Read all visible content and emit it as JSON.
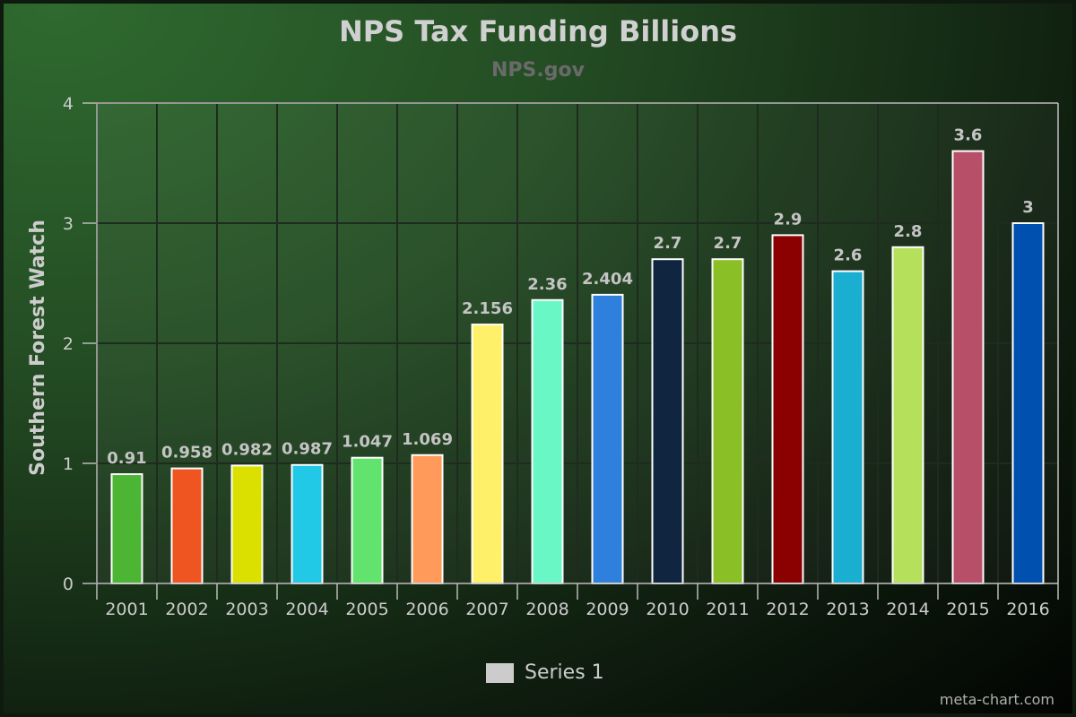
{
  "chart_data": {
    "type": "bar",
    "title": "NPS Tax Funding Billions",
    "subtitle": "NPS.gov",
    "xlabel": "",
    "ylabel": "Southern Forest Watch",
    "categories": [
      "2001",
      "2002",
      "2003",
      "2004",
      "2005",
      "2006",
      "2007",
      "2008",
      "2009",
      "2010",
      "2011",
      "2012",
      "2013",
      "2014",
      "2015",
      "2016"
    ],
    "values": [
      0.91,
      0.958,
      0.982,
      0.987,
      1.047,
      1.069,
      2.156,
      2.36,
      2.404,
      2.7,
      2.7,
      2.9,
      2.6,
      2.8,
      3.6,
      3
    ],
    "data_labels": [
      "0.91",
      "0.958",
      "0.982",
      "0.987",
      "1.047",
      "1.069",
      "2.156",
      "2.36",
      "2.404",
      "2.7",
      "2.7",
      "2.9",
      "2.6",
      "2.8",
      "3.6",
      "3"
    ],
    "colors": [
      "#4db534",
      "#ee5520",
      "#dbe000",
      "#22c9e6",
      "#62e36e",
      "#ff9a5a",
      "#fff06a",
      "#6af7c6",
      "#2f7fdc",
      "#0f2540",
      "#8abf26",
      "#8b0000",
      "#1aaed0",
      "#b4e05c",
      "#b84f68",
      "#0050b0"
    ],
    "ylim": [
      0,
      4
    ],
    "yticks": [
      "0",
      "1",
      "2",
      "3",
      "4"
    ],
    "grid": true,
    "legend": {
      "position": "bottom-center",
      "entries": [
        {
          "name": "Series 1",
          "color": "#cccccc"
        }
      ]
    }
  },
  "credit": "meta-chart.com"
}
